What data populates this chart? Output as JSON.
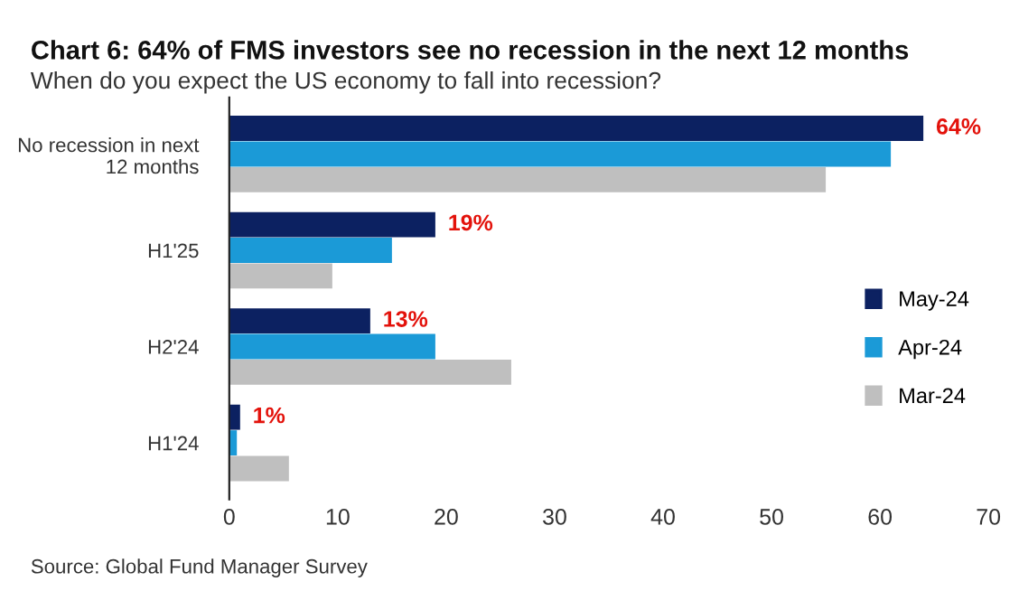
{
  "chart_data": {
    "type": "bar",
    "orientation": "horizontal",
    "title": "Chart 6: 64% of FMS investors see no recession in the next 12 months",
    "subtitle": "When do you expect the US economy to fall into recession?",
    "categories": [
      "No recession in next\n12 months",
      "H1'25",
      "H2'24",
      "H1'24"
    ],
    "series": [
      {
        "name": "May-24",
        "color": "#0c2161",
        "values": [
          64,
          19,
          13,
          1
        ],
        "value_labels": [
          "64%",
          "19%",
          "13%",
          "1%"
        ]
      },
      {
        "name": "Apr-24",
        "color": "#1b9ad7",
        "values": [
          61,
          15,
          19,
          0.7
        ]
      },
      {
        "name": "Mar-24",
        "color": "#bfbfbf",
        "values": [
          55,
          9.5,
          26,
          5.5
        ]
      }
    ],
    "xlim": [
      0,
      70
    ],
    "xticks": [
      0,
      10,
      20,
      30,
      40,
      50,
      60,
      70
    ],
    "grid": false,
    "legend": "right",
    "annotations": [
      "Source: Global Fund Manager Survey"
    ]
  }
}
